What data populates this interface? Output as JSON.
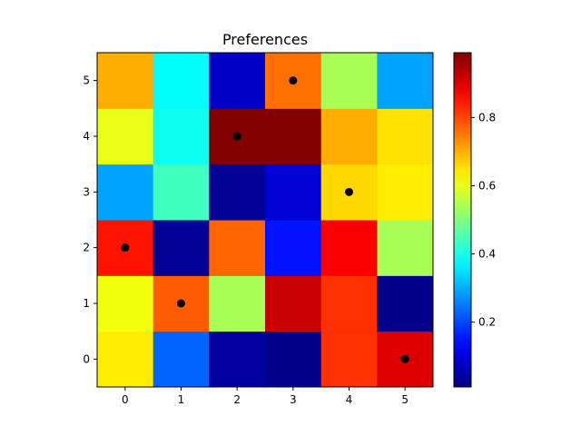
{
  "chart_data": {
    "type": "heatmap",
    "title": "Preferences",
    "xlabel": "",
    "ylabel": "",
    "x_categories": [
      "0",
      "1",
      "2",
      "3",
      "4",
      "5"
    ],
    "y_categories": [
      "0",
      "1",
      "2",
      "3",
      "4",
      "5"
    ],
    "values": [
      [
        0.64,
        0.23,
        0.04,
        0.02,
        0.82,
        0.9
      ],
      [
        0.61,
        0.78,
        0.54,
        0.92,
        0.82,
        0.02
      ],
      [
        0.85,
        0.03,
        0.77,
        0.15,
        0.87,
        0.54
      ],
      [
        0.29,
        0.44,
        0.03,
        0.09,
        0.66,
        0.64
      ],
      [
        0.6,
        0.39,
        0.99,
        0.99,
        0.7,
        0.65
      ],
      [
        0.7,
        0.38,
        0.08,
        0.76,
        0.54,
        0.29
      ]
    ],
    "markers": [
      {
        "x": 0,
        "y": 2
      },
      {
        "x": 1,
        "y": 1
      },
      {
        "x": 2,
        "y": 4
      },
      {
        "x": 3,
        "y": 5
      },
      {
        "x": 4,
        "y": 3
      },
      {
        "x": 5,
        "y": 0
      }
    ],
    "colormap": "jet",
    "marker_color": "#000000",
    "colorbar": {
      "range": [
        0.01,
        0.99
      ],
      "ticks": [
        0.2,
        0.4,
        0.6,
        0.8
      ],
      "tick_labels": [
        "0.2",
        "0.4",
        "0.6",
        "0.8"
      ]
    },
    "grid": false
  }
}
